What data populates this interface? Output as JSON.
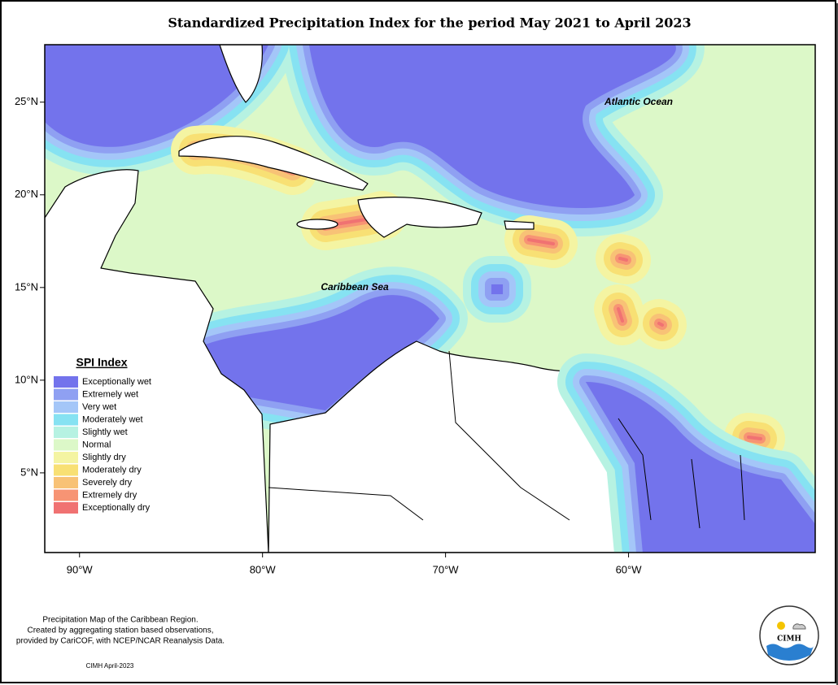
{
  "title": "Standardized Precipitation Index for the period May 2021 to April 2023",
  "map": {
    "xlim": [
      -91.9,
      -49.8
    ],
    "ylim": [
      0.7,
      28.1
    ],
    "xticks": [
      {
        "value": -90,
        "label": "90°W"
      },
      {
        "value": -80,
        "label": "80°W"
      },
      {
        "value": -70,
        "label": "70°W"
      },
      {
        "value": -60,
        "label": "60°W"
      }
    ],
    "yticks": [
      {
        "value": 25,
        "label": "25°N"
      },
      {
        "value": 20,
        "label": "20°N"
      },
      {
        "value": 15,
        "label": "15°N"
      },
      {
        "value": 10,
        "label": "10°N"
      },
      {
        "value": 5,
        "label": "5°N"
      }
    ],
    "labels": {
      "atlantic": "Atlantic Ocean",
      "caribbean": "Caribbean Sea"
    }
  },
  "legend": {
    "title": "SPI Index",
    "items": [
      {
        "name": "Exceptionally wet",
        "color": "#7373ec"
      },
      {
        "name": "Extremely wet",
        "color": "#8fa0f2"
      },
      {
        "name": "Very wet",
        "color": "#a4c6f8"
      },
      {
        "name": "Moderately wet",
        "color": "#86e2f2"
      },
      {
        "name": "Slightly wet",
        "color": "#b6f2e2"
      },
      {
        "name": "Normal",
        "color": "#dcf8c8"
      },
      {
        "name": "Slightly dry",
        "color": "#f4f4a2"
      },
      {
        "name": "Moderately dry",
        "color": "#f8e074"
      },
      {
        "name": "Severely dry",
        "color": "#f8c276"
      },
      {
        "name": "Extremely dry",
        "color": "#f79474"
      },
      {
        "name": "Exceptionally dry",
        "color": "#f07272"
      }
    ]
  },
  "footer": {
    "note": [
      "Precipitation Map of the Caribbean Region.",
      "Created by aggregating station based observations,",
      "provided by CariCOF, with NCEP/NCAR Reanalysis Data."
    ],
    "credit": "CIMH April-2023"
  },
  "logo": {
    "text": "CIMH"
  }
}
